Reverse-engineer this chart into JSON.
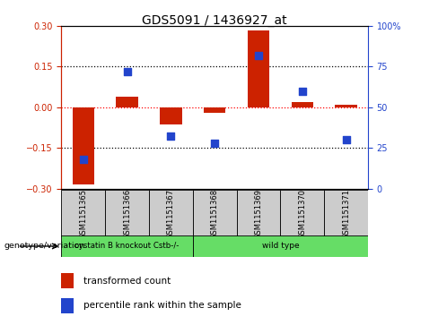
{
  "title": "GDS5091 / 1436927_at",
  "samples": [
    "GSM1151365",
    "GSM1151366",
    "GSM1151367",
    "GSM1151368",
    "GSM1151369",
    "GSM1151370",
    "GSM1151371"
  ],
  "bar_values": [
    -0.285,
    0.04,
    -0.065,
    -0.02,
    0.285,
    0.02,
    0.01
  ],
  "dot_values": [
    0.18,
    0.72,
    0.32,
    0.28,
    0.82,
    0.6,
    0.3
  ],
  "bar_color": "#cc2200",
  "dot_color": "#2244cc",
  "ylim": [
    -0.3,
    0.3
  ],
  "y2lim": [
    0,
    100
  ],
  "yticks": [
    -0.3,
    -0.15,
    0.0,
    0.15,
    0.3
  ],
  "y2ticks": [
    0,
    25,
    50,
    75,
    100
  ],
  "group1_label": "cystatin B knockout Cstb-/-",
  "group2_label": "wild type",
  "group1_count": 3,
  "group_color": "#66dd66",
  "sample_bg_color": "#cccccc",
  "legend_bar_label": "transformed count",
  "legend_dot_label": "percentile rank within the sample",
  "genotype_label": "genotype/variation",
  "y2tick_labels": [
    "0",
    "25",
    "50",
    "75",
    "100%"
  ],
  "bar_width": 0.5,
  "title_fontsize": 10,
  "tick_fontsize": 7,
  "label_fontsize": 7,
  "legend_fontsize": 7.5
}
